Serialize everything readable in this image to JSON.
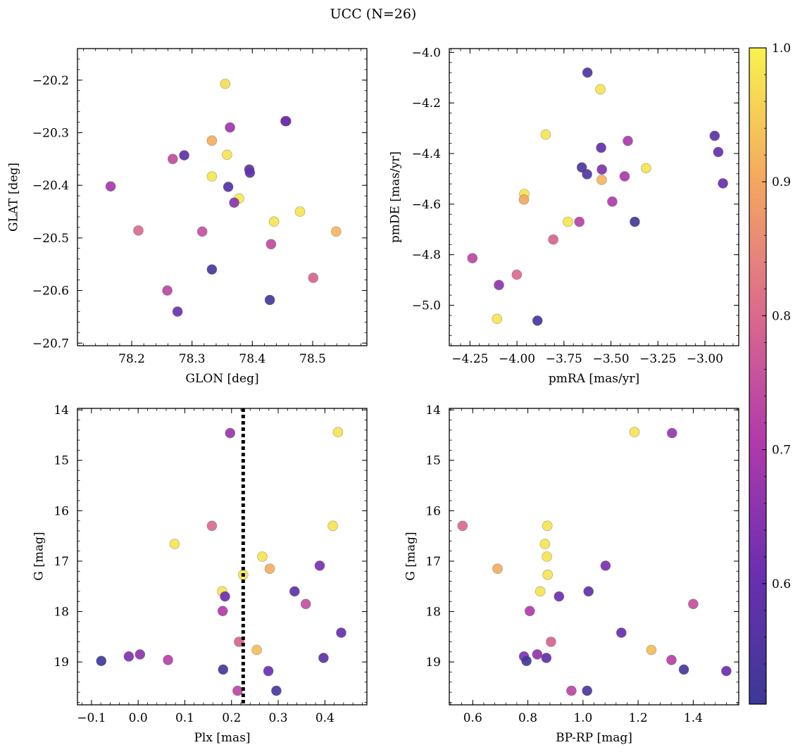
{
  "figure": {
    "title": "UCC (N=26)",
    "colorbar": {
      "colormap": "plasma",
      "range": [
        0.51,
        1.0
      ],
      "ticks": [
        0.6,
        0.7,
        0.8,
        0.9,
        1.0
      ],
      "tick_labels": [
        "0.6",
        "0.7",
        "0.8",
        "0.9",
        "1.0"
      ]
    }
  },
  "chart_data": [
    {
      "type": "scatter",
      "xlabel": "GLON [deg]",
      "ylabel": "GLAT [deg]",
      "xlim": [
        78.11,
        78.59
      ],
      "ylim": [
        -20.705,
        -20.14
      ],
      "y_inverted": false,
      "xticks": [
        78.2,
        78.3,
        78.4,
        78.5
      ],
      "xtick_labels": [
        "78.2",
        "78.3",
        "78.4",
        "78.5"
      ],
      "yticks": [
        -20.7,
        -20.6,
        -20.5,
        -20.4,
        -20.3,
        -20.2
      ],
      "ytick_labels": [
        "−20.7",
        "−20.6",
        "−20.5",
        "−20.4",
        "−20.3",
        "−20.2"
      ],
      "points": [
        {
          "x": 78.355,
          "y": -20.207,
          "c": 0.97
        },
        {
          "x": 78.455,
          "y": -20.278,
          "c": 0.6
        },
        {
          "x": 78.363,
          "y": -20.29,
          "c": 0.68
        },
        {
          "x": 78.333,
          "y": -20.315,
          "c": 0.91
        },
        {
          "x": 78.358,
          "y": -20.342,
          "c": 0.98
        },
        {
          "x": 78.287,
          "y": -20.343,
          "c": 0.58
        },
        {
          "x": 78.268,
          "y": -20.35,
          "c": 0.74
        },
        {
          "x": 78.395,
          "y": -20.37,
          "c": 0.57
        },
        {
          "x": 78.396,
          "y": -20.376,
          "c": 0.59
        },
        {
          "x": 78.333,
          "y": -20.383,
          "c": 0.98
        },
        {
          "x": 78.165,
          "y": -20.402,
          "c": 0.69
        },
        {
          "x": 78.36,
          "y": -20.403,
          "c": 0.56
        },
        {
          "x": 78.378,
          "y": -20.425,
          "c": 0.99
        },
        {
          "x": 78.37,
          "y": -20.433,
          "c": 0.65
        },
        {
          "x": 78.479,
          "y": -20.45,
          "c": 0.98
        },
        {
          "x": 78.436,
          "y": -20.469,
          "c": 0.98
        },
        {
          "x": 78.211,
          "y": -20.486,
          "c": 0.8
        },
        {
          "x": 78.317,
          "y": -20.488,
          "c": 0.75
        },
        {
          "x": 78.539,
          "y": -20.488,
          "c": 0.92
        },
        {
          "x": 78.431,
          "y": -20.512,
          "c": 0.74
        },
        {
          "x": 78.333,
          "y": -20.56,
          "c": 0.53
        },
        {
          "x": 78.501,
          "y": -20.576,
          "c": 0.79
        },
        {
          "x": 78.259,
          "y": -20.6,
          "c": 0.73
        },
        {
          "x": 78.429,
          "y": -20.618,
          "c": 0.52
        },
        {
          "x": 78.276,
          "y": -20.64,
          "c": 0.61
        },
        {
          "x": 78.456,
          "y": -20.278,
          "c": 0.62
        }
      ]
    },
    {
      "type": "scatter",
      "xlabel": "pmRA [mas/yr]",
      "ylabel": "pmDE [mas/yr]",
      "xlim": [
        -4.36,
        -2.82
      ],
      "ylim": [
        -5.16,
        -3.985
      ],
      "y_inverted": false,
      "xticks": [
        -4.25,
        -4.0,
        -3.75,
        -3.5,
        -3.25,
        -3.0
      ],
      "xtick_labels": [
        "−4.25",
        "−4.00",
        "−3.75",
        "−3.50",
        "−3.25",
        "−3.00"
      ],
      "yticks": [
        -5.0,
        -4.8,
        -4.6,
        -4.4,
        -4.2,
        -4.0
      ],
      "ytick_labels": [
        "−5.0",
        "−4.8",
        "−4.6",
        "−4.4",
        "−4.2",
        "−4.0"
      ],
      "points": [
        {
          "x": -3.625,
          "y": -4.08,
          "c": 0.55
        },
        {
          "x": -3.556,
          "y": -4.146,
          "c": 0.98
        },
        {
          "x": -3.847,
          "y": -4.325,
          "c": 0.98
        },
        {
          "x": -2.948,
          "y": -4.33,
          "c": 0.57
        },
        {
          "x": -3.41,
          "y": -4.35,
          "c": 0.7
        },
        {
          "x": -3.552,
          "y": -4.377,
          "c": 0.59
        },
        {
          "x": -2.929,
          "y": -4.394,
          "c": 0.6
        },
        {
          "x": -3.655,
          "y": -4.455,
          "c": 0.54
        },
        {
          "x": -3.313,
          "y": -4.458,
          "c": 0.98
        },
        {
          "x": -3.548,
          "y": -4.463,
          "c": 0.64
        },
        {
          "x": -3.627,
          "y": -4.482,
          "c": 0.56
        },
        {
          "x": -3.427,
          "y": -4.49,
          "c": 0.7
        },
        {
          "x": -3.549,
          "y": -4.504,
          "c": 0.92
        },
        {
          "x": -2.904,
          "y": -4.518,
          "c": 0.6
        },
        {
          "x": -3.961,
          "y": -4.56,
          "c": 0.98
        },
        {
          "x": -3.963,
          "y": -4.582,
          "c": 0.9
        },
        {
          "x": -3.493,
          "y": -4.59,
          "c": 0.71
        },
        {
          "x": -3.729,
          "y": -4.67,
          "c": 0.98
        },
        {
          "x": -3.668,
          "y": -4.67,
          "c": 0.72
        },
        {
          "x": -3.373,
          "y": -4.67,
          "c": 0.52
        },
        {
          "x": -3.807,
          "y": -4.74,
          "c": 0.79
        },
        {
          "x": -4.237,
          "y": -4.814,
          "c": 0.73
        },
        {
          "x": -4.001,
          "y": -4.879,
          "c": 0.8
        },
        {
          "x": -4.096,
          "y": -4.92,
          "c": 0.66
        },
        {
          "x": -4.106,
          "y": -5.054,
          "c": 0.98
        },
        {
          "x": -3.891,
          "y": -5.061,
          "c": 0.53
        }
      ]
    },
    {
      "type": "scatter",
      "xlabel": "Plx [mas]",
      "ylabel": "G [mag]",
      "xlim": [
        -0.13,
        0.49
      ],
      "ylim": [
        19.85,
        13.97
      ],
      "y_inverted": true,
      "reference_line": {
        "axis": "x",
        "value": 0.225,
        "style": "dotted"
      },
      "xticks": [
        -0.1,
        0.0,
        0.1,
        0.2,
        0.3,
        0.4
      ],
      "xtick_labels": [
        "−0.1",
        "0.0",
        "0.1",
        "0.2",
        "0.3",
        "0.4"
      ],
      "yticks": [
        14,
        15,
        16,
        17,
        18,
        19
      ],
      "ytick_labels": [
        "14",
        "15",
        "16",
        "17",
        "18",
        "19"
      ],
      "points": [
        {
          "x": 0.197,
          "y": 14.46,
          "c": 0.67
        },
        {
          "x": 0.428,
          "y": 14.44,
          "c": 0.98
        },
        {
          "x": 0.158,
          "y": 16.3,
          "c": 0.8
        },
        {
          "x": 0.417,
          "y": 16.3,
          "c": 0.98
        },
        {
          "x": 0.078,
          "y": 16.66,
          "c": 0.98
        },
        {
          "x": 0.266,
          "y": 16.91,
          "c": 0.98
        },
        {
          "x": 0.389,
          "y": 17.09,
          "c": 0.63
        },
        {
          "x": 0.282,
          "y": 17.15,
          "c": 0.91
        },
        {
          "x": 0.225,
          "y": 17.27,
          "c": 0.98
        },
        {
          "x": 0.335,
          "y": 17.6,
          "c": 0.58
        },
        {
          "x": 0.18,
          "y": 17.6,
          "c": 0.98
        },
        {
          "x": 0.186,
          "y": 17.7,
          "c": 0.61
        },
        {
          "x": 0.359,
          "y": 17.85,
          "c": 0.75
        },
        {
          "x": 0.181,
          "y": 17.99,
          "c": 0.71
        },
        {
          "x": 0.435,
          "y": 18.42,
          "c": 0.6
        },
        {
          "x": 0.216,
          "y": 18.6,
          "c": 0.79
        },
        {
          "x": 0.254,
          "y": 18.76,
          "c": 0.93
        },
        {
          "x": 0.004,
          "y": 18.85,
          "c": 0.66
        },
        {
          "x": -0.02,
          "y": 18.89,
          "c": 0.64
        },
        {
          "x": 0.397,
          "y": 18.92,
          "c": 0.58
        },
        {
          "x": 0.064,
          "y": 18.96,
          "c": 0.72
        },
        {
          "x": -0.079,
          "y": 18.98,
          "c": 0.52
        },
        {
          "x": 0.182,
          "y": 19.15,
          "c": 0.53
        },
        {
          "x": 0.279,
          "y": 19.18,
          "c": 0.61
        },
        {
          "x": 0.213,
          "y": 19.57,
          "c": 0.73
        },
        {
          "x": 0.296,
          "y": 19.57,
          "c": 0.54
        }
      ]
    },
    {
      "type": "scatter",
      "xlabel": "BP-RP [mag]",
      "ylabel": "G [mag]",
      "xlim": [
        0.515,
        1.565
      ],
      "ylim": [
        19.85,
        13.97
      ],
      "y_inverted": true,
      "xticks": [
        0.6,
        0.8,
        1.0,
        1.2,
        1.4
      ],
      "xtick_labels": [
        "0.6",
        "0.8",
        "1.0",
        "1.2",
        "1.4"
      ],
      "yticks": [
        14,
        15,
        16,
        17,
        18,
        19
      ],
      "ytick_labels": [
        "14",
        "15",
        "16",
        "17",
        "18",
        "19"
      ],
      "points": [
        {
          "x": 1.187,
          "y": 14.44,
          "c": 0.98
        },
        {
          "x": 1.323,
          "y": 14.46,
          "c": 0.67
        },
        {
          "x": 0.563,
          "y": 16.3,
          "c": 0.8
        },
        {
          "x": 0.871,
          "y": 16.3,
          "c": 0.98
        },
        {
          "x": 0.862,
          "y": 16.66,
          "c": 0.98
        },
        {
          "x": 0.869,
          "y": 16.91,
          "c": 0.98
        },
        {
          "x": 1.082,
          "y": 17.09,
          "c": 0.63
        },
        {
          "x": 0.69,
          "y": 17.15,
          "c": 0.91
        },
        {
          "x": 0.872,
          "y": 17.27,
          "c": 0.98
        },
        {
          "x": 1.02,
          "y": 17.6,
          "c": 0.58
        },
        {
          "x": 0.845,
          "y": 17.6,
          "c": 0.98
        },
        {
          "x": 0.913,
          "y": 17.7,
          "c": 0.61
        },
        {
          "x": 1.4,
          "y": 17.85,
          "c": 0.75
        },
        {
          "x": 0.807,
          "y": 17.99,
          "c": 0.71
        },
        {
          "x": 1.139,
          "y": 18.42,
          "c": 0.6
        },
        {
          "x": 0.884,
          "y": 18.6,
          "c": 0.79
        },
        {
          "x": 1.248,
          "y": 18.76,
          "c": 0.93
        },
        {
          "x": 0.834,
          "y": 18.85,
          "c": 0.66
        },
        {
          "x": 0.786,
          "y": 18.89,
          "c": 0.64
        },
        {
          "x": 0.867,
          "y": 18.92,
          "c": 0.58
        },
        {
          "x": 1.321,
          "y": 18.96,
          "c": 0.72
        },
        {
          "x": 0.795,
          "y": 18.98,
          "c": 0.52
        },
        {
          "x": 1.366,
          "y": 19.15,
          "c": 0.53
        },
        {
          "x": 1.52,
          "y": 19.18,
          "c": 0.61
        },
        {
          "x": 0.958,
          "y": 19.57,
          "c": 0.73
        },
        {
          "x": 1.015,
          "y": 19.57,
          "c": 0.54
        }
      ]
    }
  ]
}
